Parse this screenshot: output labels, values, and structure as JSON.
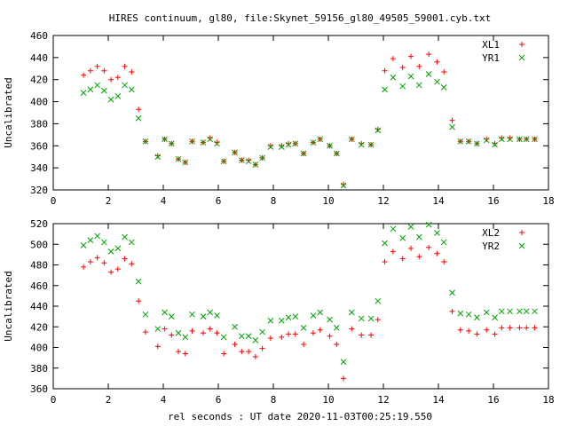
{
  "title": "HIRES continuum, gl80, file:Skynet_59156_gl80_49505_59001.cyb.txt",
  "xlabel": "rel seconds : UT date 2020-11-03T00:25:19.550",
  "chart_data": [
    {
      "type": "scatter",
      "ylabel": "Uncalibrated",
      "xlim": [
        0,
        18
      ],
      "ylim": [
        320,
        460
      ],
      "xticks": [
        0,
        2,
        4,
        6,
        8,
        10,
        12,
        14,
        16,
        18
      ],
      "yticks": [
        320,
        340,
        360,
        380,
        400,
        420,
        440,
        460
      ],
      "legend_position": "top-right",
      "x": [
        1.1,
        1.35,
        1.6,
        1.85,
        2.1,
        2.35,
        2.6,
        2.85,
        3.1,
        3.35,
        3.8,
        4.05,
        4.3,
        4.55,
        4.8,
        5.05,
        5.45,
        5.7,
        5.95,
        6.2,
        6.6,
        6.85,
        7.1,
        7.35,
        7.6,
        7.9,
        8.3,
        8.55,
        8.8,
        9.1,
        9.45,
        9.7,
        10.05,
        10.3,
        10.55,
        10.85,
        11.2,
        11.55,
        11.8,
        12.05,
        12.35,
        12.7,
        13.0,
        13.3,
        13.65,
        13.95,
        14.2,
        14.5,
        14.8,
        15.1,
        15.4,
        15.75,
        16.05,
        16.3,
        16.6,
        16.95,
        17.2,
        17.5
      ],
      "series": [
        {
          "name": "XL1",
          "marker": "+",
          "color": "#ff0000",
          "values": [
            424,
            428,
            432,
            428,
            420,
            422,
            432,
            427,
            393,
            364,
            351,
            366,
            362,
            348,
            345,
            364,
            363,
            367,
            363,
            346,
            354,
            347,
            347,
            343,
            349,
            360,
            360,
            362,
            362,
            353,
            363,
            366,
            360,
            353,
            325,
            366,
            362,
            361,
            375,
            428,
            439,
            431,
            441,
            432,
            443,
            436,
            427,
            383,
            364,
            364,
            362,
            366,
            362,
            367,
            367,
            366,
            366,
            366
          ]
        },
        {
          "name": "YR1",
          "marker": "x",
          "color": "#00a000",
          "values": [
            408,
            411,
            415,
            410,
            402,
            405,
            415,
            411,
            385,
            364,
            350,
            366,
            362,
            348,
            345,
            364,
            363,
            366,
            362,
            346,
            354,
            347,
            346,
            343,
            349,
            359,
            359,
            361,
            362,
            353,
            363,
            366,
            360,
            353,
            324,
            366,
            361,
            361,
            374,
            411,
            422,
            414,
            423,
            415,
            425,
            418,
            413,
            377,
            364,
            364,
            362,
            365,
            361,
            366,
            366,
            366,
            366,
            366
          ]
        }
      ]
    },
    {
      "type": "scatter",
      "ylabel": "Uncalibrated",
      "xlim": [
        0,
        18
      ],
      "ylim": [
        360,
        520
      ],
      "xticks": [
        0,
        2,
        4,
        6,
        8,
        10,
        12,
        14,
        16,
        18
      ],
      "yticks": [
        360,
        380,
        400,
        420,
        440,
        460,
        480,
        500,
        520
      ],
      "legend_position": "top-right",
      "x": [
        1.1,
        1.35,
        1.6,
        1.85,
        2.1,
        2.35,
        2.6,
        2.85,
        3.1,
        3.35,
        3.8,
        4.05,
        4.3,
        4.55,
        4.8,
        5.05,
        5.45,
        5.7,
        5.95,
        6.2,
        6.6,
        6.85,
        7.1,
        7.35,
        7.6,
        7.9,
        8.3,
        8.55,
        8.8,
        9.1,
        9.45,
        9.7,
        10.05,
        10.3,
        10.55,
        10.85,
        11.2,
        11.55,
        11.8,
        12.05,
        12.35,
        12.7,
        13.0,
        13.3,
        13.65,
        13.95,
        14.2,
        14.5,
        14.8,
        15.1,
        15.4,
        15.75,
        16.05,
        16.3,
        16.6,
        16.95,
        17.2,
        17.5
      ],
      "series": [
        {
          "name": "XL2",
          "marker": "+",
          "color": "#ff0000",
          "values": [
            478,
            483,
            487,
            482,
            473,
            476,
            486,
            481,
            445,
            415,
            401,
            418,
            412,
            396,
            394,
            416,
            414,
            418,
            414,
            394,
            403,
            396,
            396,
            391,
            399,
            409,
            410,
            413,
            413,
            403,
            414,
            417,
            411,
            403,
            370,
            418,
            412,
            412,
            427,
            483,
            493,
            486,
            496,
            488,
            497,
            491,
            483,
            435,
            417,
            416,
            413,
            417,
            413,
            419,
            419,
            419,
            419,
            419
          ]
        },
        {
          "name": "YR2",
          "marker": "x",
          "color": "#00a000",
          "values": [
            499,
            504,
            508,
            502,
            493,
            496,
            507,
            502,
            464,
            432,
            418,
            434,
            430,
            414,
            410,
            432,
            430,
            434,
            431,
            410,
            420,
            411,
            411,
            407,
            415,
            426,
            426,
            429,
            430,
            419,
            431,
            434,
            427,
            419,
            386,
            434,
            428,
            428,
            445,
            501,
            515,
            506,
            517,
            507,
            519,
            511,
            502,
            453,
            433,
            432,
            429,
            434,
            429,
            435,
            435,
            435,
            435,
            435
          ]
        }
      ]
    }
  ]
}
